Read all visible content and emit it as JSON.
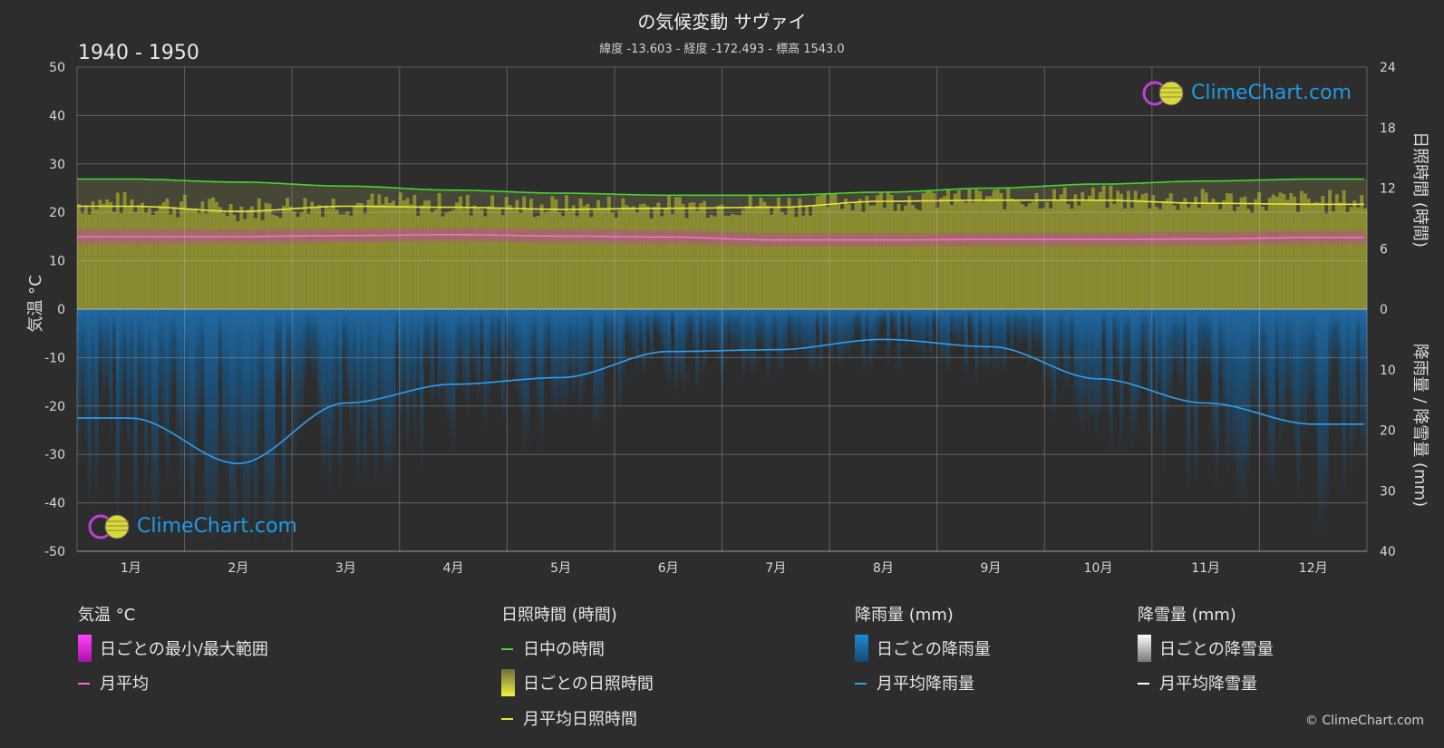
{
  "header": {
    "title": "の気候変動 サヴァイ",
    "subtitle": "緯度 -13.603 - 経度 -172.493 - 標高 1543.0",
    "period": "1940 - 1950"
  },
  "axes": {
    "left_label": "気温 °C",
    "right_top_label": "日照時間 (時間)",
    "right_bottom_label": "降雨量 / 降雪量 (mm)"
  },
  "legend": {
    "temp": {
      "head": "気温 °C",
      "range": "日ごとの最小/最大範囲",
      "avg": "月平均"
    },
    "sun": {
      "head": "日照時間 (時間)",
      "daylight": "日中の時間",
      "daily": "日ごとの日照時間",
      "avg": "月平均日照時間"
    },
    "rain": {
      "head": "降雨量 (mm)",
      "daily": "日ごとの降雨量",
      "avg": "月平均降雨量"
    },
    "snow": {
      "head": "降雪量 (mm)",
      "daily": "日ごとの降雪量",
      "avg": "月平均降雪量"
    }
  },
  "logo": {
    "text": "ClimeChart.com"
  },
  "copyright": "© ClimeChart.com",
  "colors": {
    "background": "#2d2d2d",
    "daylight": "#44d62c",
    "sunshine_avg": "#e8e83a",
    "sunshine_fill": "#9a9a2a",
    "temp_avg": "#ff66dd",
    "temp_range": "#dd22dd",
    "rain": "#1e8ad6",
    "rain_avg": "#2ea0f0",
    "snow_avg": "#ffffff"
  },
  "chart_data": {
    "type": "line",
    "categories": [
      "1月",
      "2月",
      "3月",
      "4月",
      "5月",
      "6月",
      "7月",
      "8月",
      "9月",
      "10月",
      "11月",
      "12月"
    ],
    "temp_axis": {
      "ylim": [
        -50,
        50
      ],
      "ticks": [
        50,
        40,
        30,
        20,
        10,
        0,
        -10,
        -20,
        -30,
        -40,
        -50
      ]
    },
    "sun_axis": {
      "ylim": [
        0,
        24
      ],
      "ticks": [
        24,
        18,
        12,
        6,
        0
      ]
    },
    "precip_axis": {
      "ylim": [
        0,
        40
      ],
      "ticks": [
        0,
        10,
        20,
        30,
        40
      ]
    },
    "series": [
      {
        "name": "日中の時間",
        "axis": "sun",
        "values": [
          12.9,
          12.6,
          12.2,
          11.8,
          11.5,
          11.3,
          11.3,
          11.6,
          12.0,
          12.4,
          12.7,
          12.9
        ]
      },
      {
        "name": "月平均日照時間",
        "axis": "sun",
        "values": [
          10.2,
          9.7,
          10.2,
          10.1,
          9.9,
          10.0,
          10.1,
          10.7,
          10.8,
          10.8,
          10.5,
          10.4
        ]
      },
      {
        "name": "月平均",
        "axis": "temp",
        "values": [
          15.0,
          15.0,
          15.2,
          15.4,
          15.1,
          14.9,
          14.3,
          14.3,
          14.4,
          14.4,
          14.5,
          14.8
        ]
      },
      {
        "name": "月平均降雨量",
        "axis": "precip",
        "values": [
          18.0,
          25.5,
          15.5,
          12.4,
          11.3,
          7.0,
          6.7,
          5.0,
          6.2,
          11.5,
          15.5,
          19.0
        ]
      },
      {
        "name": "月平均降雪量",
        "axis": "precip",
        "values": [
          0,
          0,
          0,
          0,
          0,
          0,
          0,
          0,
          0,
          0,
          0,
          0
        ]
      }
    ],
    "temp_range_band": {
      "min": [
        13.5,
        13.6,
        13.8,
        14.0,
        13.7,
        13.5,
        12.9,
        12.9,
        13.0,
        13.0,
        13.1,
        13.4
      ],
      "max": [
        16.5,
        16.4,
        16.6,
        16.8,
        16.5,
        16.3,
        15.7,
        15.7,
        15.8,
        15.8,
        15.9,
        16.2
      ]
    },
    "grid": true
  }
}
